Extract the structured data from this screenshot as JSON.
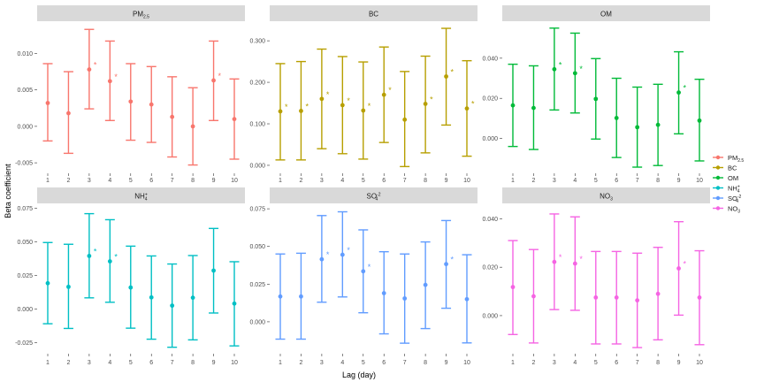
{
  "figure": {
    "xlabel": "Lag (day)",
    "ylabel": "Beta coefficient"
  },
  "legend": [
    {
      "key": "pm25",
      "label": "PM",
      "sub": "2.5",
      "sup": "",
      "color": "#F8766D"
    },
    {
      "key": "bc",
      "label": "BC",
      "sub": "",
      "sup": "",
      "color": "#B79F00"
    },
    {
      "key": "om",
      "label": "OM",
      "sub": "",
      "sup": "",
      "color": "#00BA38"
    },
    {
      "key": "nh4",
      "label": "NH",
      "sub": "4",
      "sup": "+",
      "color": "#00BFC4"
    },
    {
      "key": "so4",
      "label": "SO",
      "sub": "4",
      "sup": "-2",
      "color": "#619CFF"
    },
    {
      "key": "no3",
      "label": "NO",
      "sub": "3",
      "sup": "",
      "color": "#F564E3"
    }
  ],
  "chart_data": [
    {
      "type": "errorbar",
      "panel": {
        "label": "PM",
        "sub": "2.5",
        "sup": ""
      },
      "color": "#F8766D",
      "x": [
        1,
        2,
        3,
        4,
        5,
        6,
        7,
        8,
        9,
        10
      ],
      "estimate": [
        0.0032,
        0.0018,
        0.0078,
        0.0062,
        0.0034,
        0.003,
        0.0013,
        0.0,
        0.0063,
        0.001
      ],
      "lower": [
        -0.002,
        -0.0037,
        0.0024,
        0.0008,
        -0.0019,
        -0.0022,
        -0.0042,
        -0.0053,
        0.0008,
        -0.0045
      ],
      "upper": [
        0.0086,
        0.0075,
        0.0133,
        0.0117,
        0.0086,
        0.0082,
        0.0068,
        0.0053,
        0.0117,
        0.0065
      ],
      "significant": [
        false,
        false,
        true,
        true,
        false,
        false,
        false,
        false,
        true,
        false
      ],
      "yticks": [
        "-0.005",
        "0.000",
        "0.005",
        "0.010"
      ],
      "ytick_values": [
        -0.005,
        0.0,
        0.005,
        0.01
      ],
      "ylim": [
        -0.0062,
        0.0143
      ]
    },
    {
      "type": "errorbar",
      "panel": {
        "label": "BC",
        "sub": "",
        "sup": ""
      },
      "color": "#B79F00",
      "x": [
        1,
        2,
        3,
        4,
        5,
        6,
        7,
        8,
        9,
        10
      ],
      "estimate": [
        0.13,
        0.131,
        0.16,
        0.145,
        0.132,
        0.17,
        0.11,
        0.148,
        0.214,
        0.137
      ],
      "lower": [
        0.013,
        0.013,
        0.04,
        0.028,
        0.015,
        0.055,
        -0.003,
        0.03,
        0.097,
        0.022
      ],
      "upper": [
        0.245,
        0.25,
        0.28,
        0.262,
        0.249,
        0.285,
        0.226,
        0.263,
        0.33,
        0.252
      ],
      "significant": [
        true,
        true,
        true,
        true,
        true,
        true,
        false,
        true,
        true,
        true
      ],
      "yticks": [
        "0.000",
        "0.100",
        "0.200",
        "0.300"
      ],
      "ytick_values": [
        0.0,
        0.1,
        0.2,
        0.3
      ],
      "ylim": [
        -0.015,
        0.345
      ]
    },
    {
      "type": "errorbar",
      "panel": {
        "label": "OM",
        "sub": "",
        "sup": ""
      },
      "color": "#00BA38",
      "x": [
        1,
        2,
        3,
        4,
        5,
        6,
        7,
        8,
        9,
        10
      ],
      "estimate": [
        0.0165,
        0.0152,
        0.0345,
        0.0325,
        0.0197,
        0.0102,
        0.0056,
        0.0068,
        0.0229,
        0.0089
      ],
      "lower": [
        -0.004,
        -0.0055,
        0.0142,
        0.0127,
        -0.0003,
        -0.0095,
        -0.0143,
        -0.0135,
        0.0023,
        -0.0112
      ],
      "upper": [
        0.037,
        0.0362,
        0.055,
        0.0525,
        0.0398,
        0.03,
        0.0256,
        0.027,
        0.0432,
        0.0295
      ],
      "significant": [
        false,
        false,
        true,
        true,
        false,
        false,
        false,
        false,
        true,
        false
      ],
      "yticks": [
        "0.000",
        "0.020",
        "0.040"
      ],
      "ytick_values": [
        0.0,
        0.02,
        0.04
      ],
      "ylim": [
        -0.0165,
        0.058
      ]
    },
    {
      "type": "errorbar",
      "panel": {
        "label": "NH",
        "sub": "4",
        "sup": "+"
      },
      "color": "#00BFC4",
      "x": [
        1,
        2,
        3,
        4,
        5,
        6,
        7,
        8,
        9,
        10
      ],
      "estimate": [
        0.0192,
        0.0165,
        0.0395,
        0.0355,
        0.016,
        0.0086,
        0.0025,
        0.0084,
        0.0286,
        0.004
      ],
      "lower": [
        -0.011,
        -0.0145,
        0.0083,
        0.005,
        -0.0143,
        -0.0225,
        -0.0285,
        -0.023,
        -0.003,
        -0.0275
      ],
      "upper": [
        0.0495,
        0.0482,
        0.071,
        0.0665,
        0.0468,
        0.0395,
        0.0335,
        0.0398,
        0.06,
        0.0352
      ],
      "significant": [
        false,
        false,
        true,
        true,
        false,
        false,
        false,
        false,
        false,
        false
      ],
      "yticks": [
        "-0.025",
        "0.000",
        "0.025",
        "0.050",
        "0.075"
      ],
      "ytick_values": [
        -0.025,
        0.0,
        0.025,
        0.05,
        0.075
      ],
      "ylim": [
        -0.032,
        0.078
      ]
    },
    {
      "type": "errorbar",
      "panel": {
        "label": "SO",
        "sub": "4",
        "sup": "-2"
      },
      "color": "#619CFF",
      "x": [
        1,
        2,
        3,
        4,
        5,
        6,
        7,
        8,
        9,
        10
      ],
      "estimate": [
        0.0168,
        0.0168,
        0.0415,
        0.0445,
        0.0335,
        0.019,
        0.0155,
        0.0245,
        0.0383,
        0.015
      ],
      "lower": [
        -0.0115,
        -0.0115,
        0.013,
        0.0165,
        0.006,
        -0.008,
        -0.0142,
        -0.0045,
        0.009,
        -0.014
      ],
      "upper": [
        0.045,
        0.0455,
        0.0705,
        0.073,
        0.061,
        0.0465,
        0.045,
        0.053,
        0.0672,
        0.0445
      ],
      "significant": [
        false,
        false,
        true,
        true,
        true,
        false,
        false,
        false,
        true,
        false
      ],
      "yticks": [
        "0.000",
        "0.025",
        "0.050",
        "0.075"
      ],
      "ytick_values": [
        0.0,
        0.025,
        0.05,
        0.075
      ],
      "ylim": [
        -0.02,
        0.078
      ]
    },
    {
      "type": "errorbar",
      "panel": {
        "label": "NO",
        "sub": "3",
        "sup": ""
      },
      "color": "#F564E3",
      "x": [
        1,
        2,
        3,
        4,
        5,
        6,
        7,
        8,
        9,
        10
      ],
      "estimate": [
        0.0118,
        0.008,
        0.0222,
        0.0215,
        0.0075,
        0.0075,
        0.0063,
        0.009,
        0.0195,
        0.0075
      ],
      "lower": [
        -0.0078,
        -0.0113,
        0.0025,
        0.0022,
        -0.0117,
        -0.0117,
        -0.0132,
        -0.01,
        0.0002,
        -0.012
      ],
      "upper": [
        0.031,
        0.0273,
        0.042,
        0.0408,
        0.0265,
        0.0265,
        0.0258,
        0.0282,
        0.0388,
        0.0268
      ],
      "significant": [
        false,
        false,
        true,
        true,
        false,
        false,
        false,
        false,
        true,
        false
      ],
      "yticks": [
        "0.000",
        "0.020",
        "0.040"
      ],
      "ytick_values": [
        0.0,
        0.02,
        0.04
      ],
      "ylim": [
        -0.015,
        0.046
      ]
    }
  ]
}
